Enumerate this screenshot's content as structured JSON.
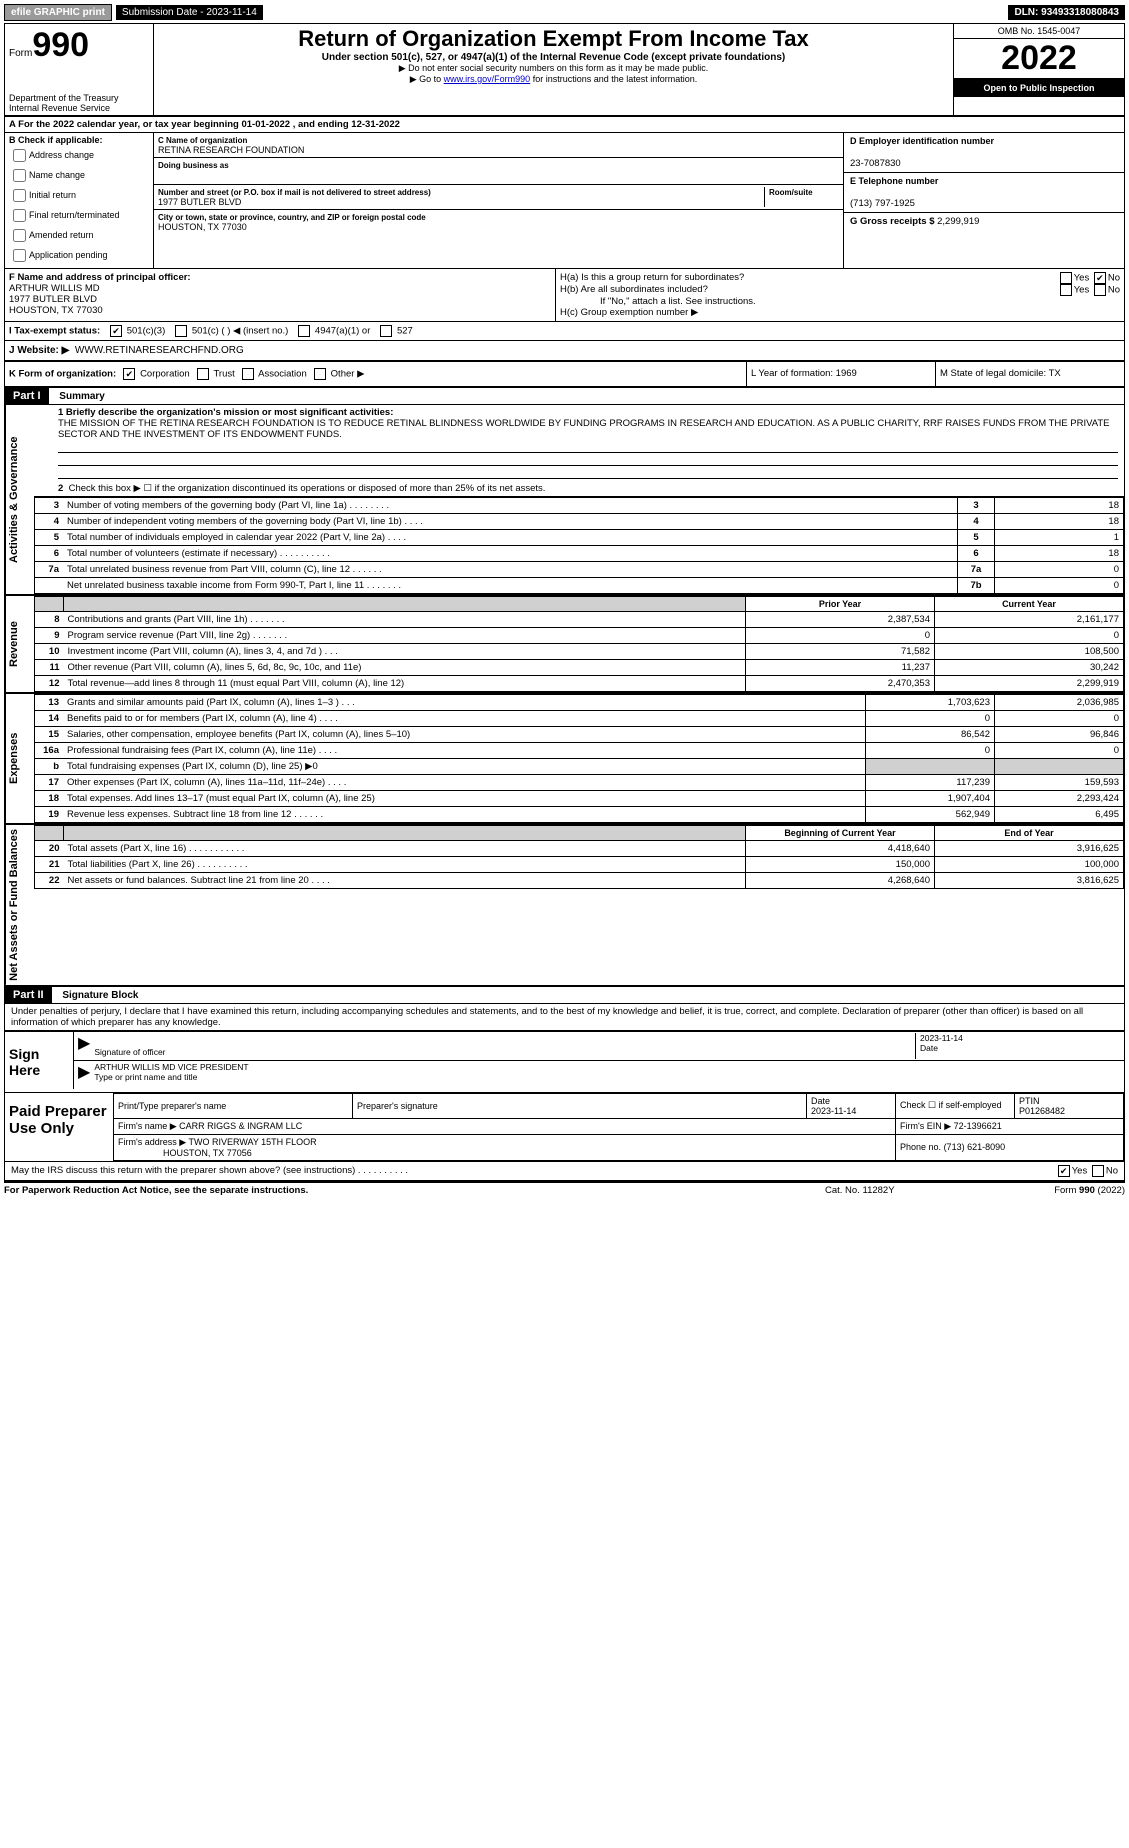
{
  "topbar": {
    "efile": "efile GRAPHIC print",
    "submission": "Submission Date - 2023-11-14",
    "dln": "DLN: 93493318080843"
  },
  "header": {
    "form_label": "Form",
    "form_number": "990",
    "title": "Return of Organization Exempt From Income Tax",
    "subtitle": "Under section 501(c), 527, or 4947(a)(1) of the Internal Revenue Code (except private foundations)",
    "note1": "▶ Do not enter social security numbers on this form as it may be made public.",
    "note2_pre": "▶ Go to ",
    "note2_link": "www.irs.gov/Form990",
    "note2_post": " for instructions and the latest information.",
    "dept": "Department of the Treasury",
    "irs": "Internal Revenue Service",
    "omb": "OMB No. 1545-0047",
    "year": "2022",
    "pub": "Open to Public Inspection"
  },
  "rowA": "A For the 2022 calendar year, or tax year beginning 01-01-2022    , and ending 12-31-2022",
  "sectionB": {
    "label": "B Check if applicable:",
    "items": [
      "Address change",
      "Name change",
      "Initial return",
      "Final return/terminated",
      "Amended return",
      "Application pending"
    ]
  },
  "sectionC": {
    "name_label": "C Name of organization",
    "name": "RETINA RESEARCH FOUNDATION",
    "dba_label": "Doing business as",
    "dba": "",
    "addr_label": "Number and street (or P.O. box if mail is not delivered to street address)",
    "room_label": "Room/suite",
    "addr": "1977 BUTLER BLVD",
    "city_label": "City or town, state or province, country, and ZIP or foreign postal code",
    "city": "HOUSTON, TX  77030"
  },
  "sectionD": {
    "label": "D Employer identification number",
    "value": "23-7087830"
  },
  "sectionE": {
    "label": "E Telephone number",
    "value": "(713) 797-1925"
  },
  "sectionG": {
    "label": "G Gross receipts $",
    "value": "2,299,919"
  },
  "sectionF": {
    "label": "F Name and address of principal officer:",
    "name": "ARTHUR WILLIS MD",
    "addr1": "1977 BUTLER BLVD",
    "addr2": "HOUSTON, TX  77030"
  },
  "sectionH": {
    "ha": "H(a)  Is this a group return for subordinates?",
    "hb": "H(b)  Are all subordinates included?",
    "hb_note": "If \"No,\" attach a list. See instructions.",
    "hc": "H(c)  Group exemption number ▶"
  },
  "rowI_label": "I  Tax-exempt status:",
  "rowI_opts": [
    "501(c)(3)",
    "501(c) (  ) ◀ (insert no.)",
    "4947(a)(1) or",
    "527"
  ],
  "rowJ": {
    "label": "J Website: ▶",
    "value": "WWW.RETINARESEARCHFND.ORG"
  },
  "rowK": {
    "left_label": "K Form of organization:",
    "opts": [
      "Corporation",
      "Trust",
      "Association",
      "Other ▶"
    ],
    "L": "L Year of formation: 1969",
    "M": "M State of legal domicile: TX"
  },
  "part1": {
    "title": "Part I",
    "subtitle": "Summary",
    "line1": "1  Briefly describe the organization's mission or most significant activities:",
    "mission": "THE MISSION OF THE RETINA RESEARCH FOUNDATION IS TO REDUCE RETINAL BLINDNESS WORLDWIDE BY FUNDING PROGRAMS IN RESEARCH AND EDUCATION. AS A PUBLIC CHARITY, RRF RAISES FUNDS FROM THE PRIVATE SECTOR AND THE INVESTMENT OF ITS ENDOWMENT FUNDS.",
    "line2": "Check this box ▶ ☐  if the organization discontinued its operations or disposed of more than 25% of its net assets."
  },
  "gov_rows": [
    {
      "n": "3",
      "d": "Number of voting members of the governing body (Part VI, line 1a)   .    .    .    .    .    .    .    .",
      "box": "3",
      "v": "18"
    },
    {
      "n": "4",
      "d": "Number of independent voting members of the governing body (Part VI, line 1b)    .    .    .    .",
      "box": "4",
      "v": "18"
    },
    {
      "n": "5",
      "d": "Total number of individuals employed in calendar year 2022 (Part V, line 2a)    .    .    .    .",
      "box": "5",
      "v": "1"
    },
    {
      "n": "6",
      "d": "Total number of volunteers (estimate if necessary)    .    .    .    .    .    .    .    .    .    .",
      "box": "6",
      "v": "18"
    },
    {
      "n": "7a",
      "d": "Total unrelated business revenue from Part VIII, column (C), line 12    .    .    .    .    .    .",
      "box": "7a",
      "v": "0"
    },
    {
      "n": "",
      "d": "Net unrelated business taxable income from Form 990-T, Part I, line 11    .    .    .    .    .    .    .",
      "box": "7b",
      "v": "0"
    }
  ],
  "rev_hdr": {
    "prior": "Prior Year",
    "curr": "Current Year"
  },
  "rev_rows": [
    {
      "n": "8",
      "d": "Contributions and grants (Part VIII, line 1h)   .    .    .    .    .    .    .",
      "p": "2,387,534",
      "c": "2,161,177"
    },
    {
      "n": "9",
      "d": "Program service revenue (Part VIII, line 2g)   .    .    .    .    .    .    .",
      "p": "0",
      "c": "0"
    },
    {
      "n": "10",
      "d": "Investment income (Part VIII, column (A), lines 3, 4, and 7d )   .    .    .",
      "p": "71,582",
      "c": "108,500"
    },
    {
      "n": "11",
      "d": "Other revenue (Part VIII, column (A), lines 5, 6d, 8c, 9c, 10c, and 11e)",
      "p": "11,237",
      "c": "30,242"
    },
    {
      "n": "12",
      "d": "Total revenue—add lines 8 through 11 (must equal Part VIII, column (A), line 12)",
      "p": "2,470,353",
      "c": "2,299,919"
    }
  ],
  "exp_rows": [
    {
      "n": "13",
      "d": "Grants and similar amounts paid (Part IX, column (A), lines 1–3 )   .    .    .",
      "p": "1,703,623",
      "c": "2,036,985"
    },
    {
      "n": "14",
      "d": "Benefits paid to or for members (Part IX, column (A), line 4)   .    .    .    .",
      "p": "0",
      "c": "0"
    },
    {
      "n": "15",
      "d": "Salaries, other compensation, employee benefits (Part IX, column (A), lines 5–10)",
      "p": "86,542",
      "c": "96,846"
    },
    {
      "n": "16a",
      "d": "Professional fundraising fees (Part IX, column (A), line 11e)   .    .    .    .",
      "p": "0",
      "c": "0"
    },
    {
      "n": "b",
      "d": "Total fundraising expenses (Part IX, column (D), line 25) ▶0",
      "p": "__GRAY__",
      "c": "__GRAY__"
    },
    {
      "n": "17",
      "d": "Other expenses (Part IX, column (A), lines 11a–11d, 11f–24e)   .    .    .    .",
      "p": "117,239",
      "c": "159,593"
    },
    {
      "n": "18",
      "d": "Total expenses. Add lines 13–17 (must equal Part IX, column (A), line 25)",
      "p": "1,907,404",
      "c": "2,293,424"
    },
    {
      "n": "19",
      "d": "Revenue less expenses. Subtract line 18 from line 12   .    .    .    .    .    .",
      "p": "562,949",
      "c": "6,495"
    }
  ],
  "net_hdr": {
    "prior": "Beginning of Current Year",
    "curr": "End of Year"
  },
  "net_rows": [
    {
      "n": "20",
      "d": "Total assets (Part X, line 16)   .    .    .    .    .    .    .    .    .    .    .",
      "p": "4,418,640",
      "c": "3,916,625"
    },
    {
      "n": "21",
      "d": "Total liabilities (Part X, line 26)   .    .    .    .    .    .    .    .    .    .",
      "p": "150,000",
      "c": "100,000"
    },
    {
      "n": "22",
      "d": "Net assets or fund balances. Subtract line 21 from line 20   .    .    .    .",
      "p": "4,268,640",
      "c": "3,816,625"
    }
  ],
  "part2": {
    "title": "Part II",
    "subtitle": "Signature Block"
  },
  "penalty": "Under penalties of perjury, I declare that I have examined this return, including accompanying schedules and statements, and to the best of my knowledge and belief, it is true, correct, and complete. Declaration of preparer (other than officer) is based on all information of which preparer has any knowledge.",
  "sign": {
    "label": "Sign Here",
    "sig_label": "Signature of officer",
    "date": "2023-11-14",
    "date_label": "Date",
    "name": "ARTHUR WILLIS MD  VICE PRESIDENT",
    "name_label": "Type or print name and title"
  },
  "paid": {
    "label": "Paid Preparer Use Only",
    "h1": "Print/Type preparer's name",
    "h2": "Preparer's signature",
    "h3": "Date",
    "h3v": "2023-11-14",
    "h4": "Check ☐ if self-employed",
    "h5": "PTIN",
    "h5v": "P01268482",
    "firm_name_label": "Firm's name    ▶",
    "firm_name": "CARR RIGGS & INGRAM LLC",
    "firm_ein_label": "Firm's EIN ▶",
    "firm_ein": "72-1396621",
    "firm_addr_label": "Firm's address ▶",
    "firm_addr1": "TWO RIVERWAY 15TH FLOOR",
    "firm_addr2": "HOUSTON, TX  77056",
    "phone_label": "Phone no.",
    "phone": "(713) 621-8090"
  },
  "discuss": "May the IRS discuss this return with the preparer shown above? (see instructions)   .    .    .    .    .    .    .    .    .    .",
  "footer": {
    "l": "For Paperwork Reduction Act Notice, see the separate instructions.",
    "m": "Cat. No. 11282Y",
    "r": "Form 990 (2022)"
  },
  "side": {
    "gov": "Activities & Governance",
    "rev": "Revenue",
    "exp": "Expenses",
    "net": "Net Assets or Fund Balances"
  }
}
